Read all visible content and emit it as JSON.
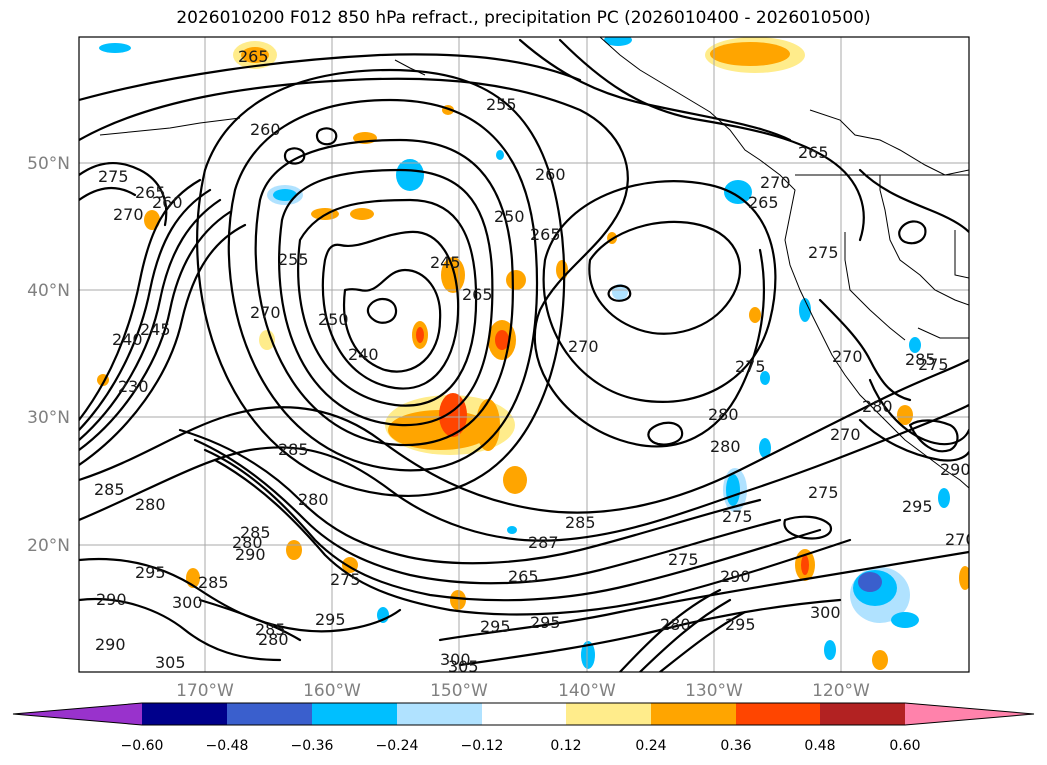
{
  "title": "2026010200 F012 850 hPa refract., precipitation PC (2026010400 - 2026010500)",
  "lat_labels": [
    "50°N",
    "40°N",
    "30°N",
    "20°N"
  ],
  "lon_labels": [
    "170°W",
    "160°W",
    "150°W",
    "140°W",
    "130°W",
    "120°W"
  ],
  "colorbar": {
    "colors": [
      "#9932cc",
      "#00008b",
      "#3a5fcd",
      "#00bfff",
      "#b0e2ff",
      "#ffffff",
      "#ffec8b",
      "#ffa500",
      "#ff4500",
      "#b22222",
      "#ff82ab"
    ],
    "tick_labels": [
      "−0.60",
      "−0.48",
      "−0.36",
      "−0.24",
      "−0.12",
      "0.12",
      "0.24",
      "0.36",
      "0.48",
      "0.60"
    ]
  },
  "contour_labels": [
    "265",
    "255",
    "260",
    "275",
    "265",
    "260",
    "270",
    "265",
    "250",
    "270",
    "265",
    "260",
    "245",
    "265",
    "275",
    "240",
    "245",
    "255",
    "270",
    "250",
    "240",
    "265",
    "275",
    "230",
    "270",
    "285",
    "285",
    "280",
    "280",
    "280",
    "285",
    "275",
    "270",
    "270",
    "280",
    "285",
    "280",
    "290",
    "275",
    "290",
    "285",
    "275",
    "295",
    "295",
    "287",
    "275",
    "265",
    "285",
    "290",
    "270",
    "290",
    "295",
    "300",
    "295",
    "295",
    "300",
    "280",
    "285",
    "295",
    "305",
    "300",
    "305",
    "280",
    "290",
    "275",
    "280"
  ]
}
